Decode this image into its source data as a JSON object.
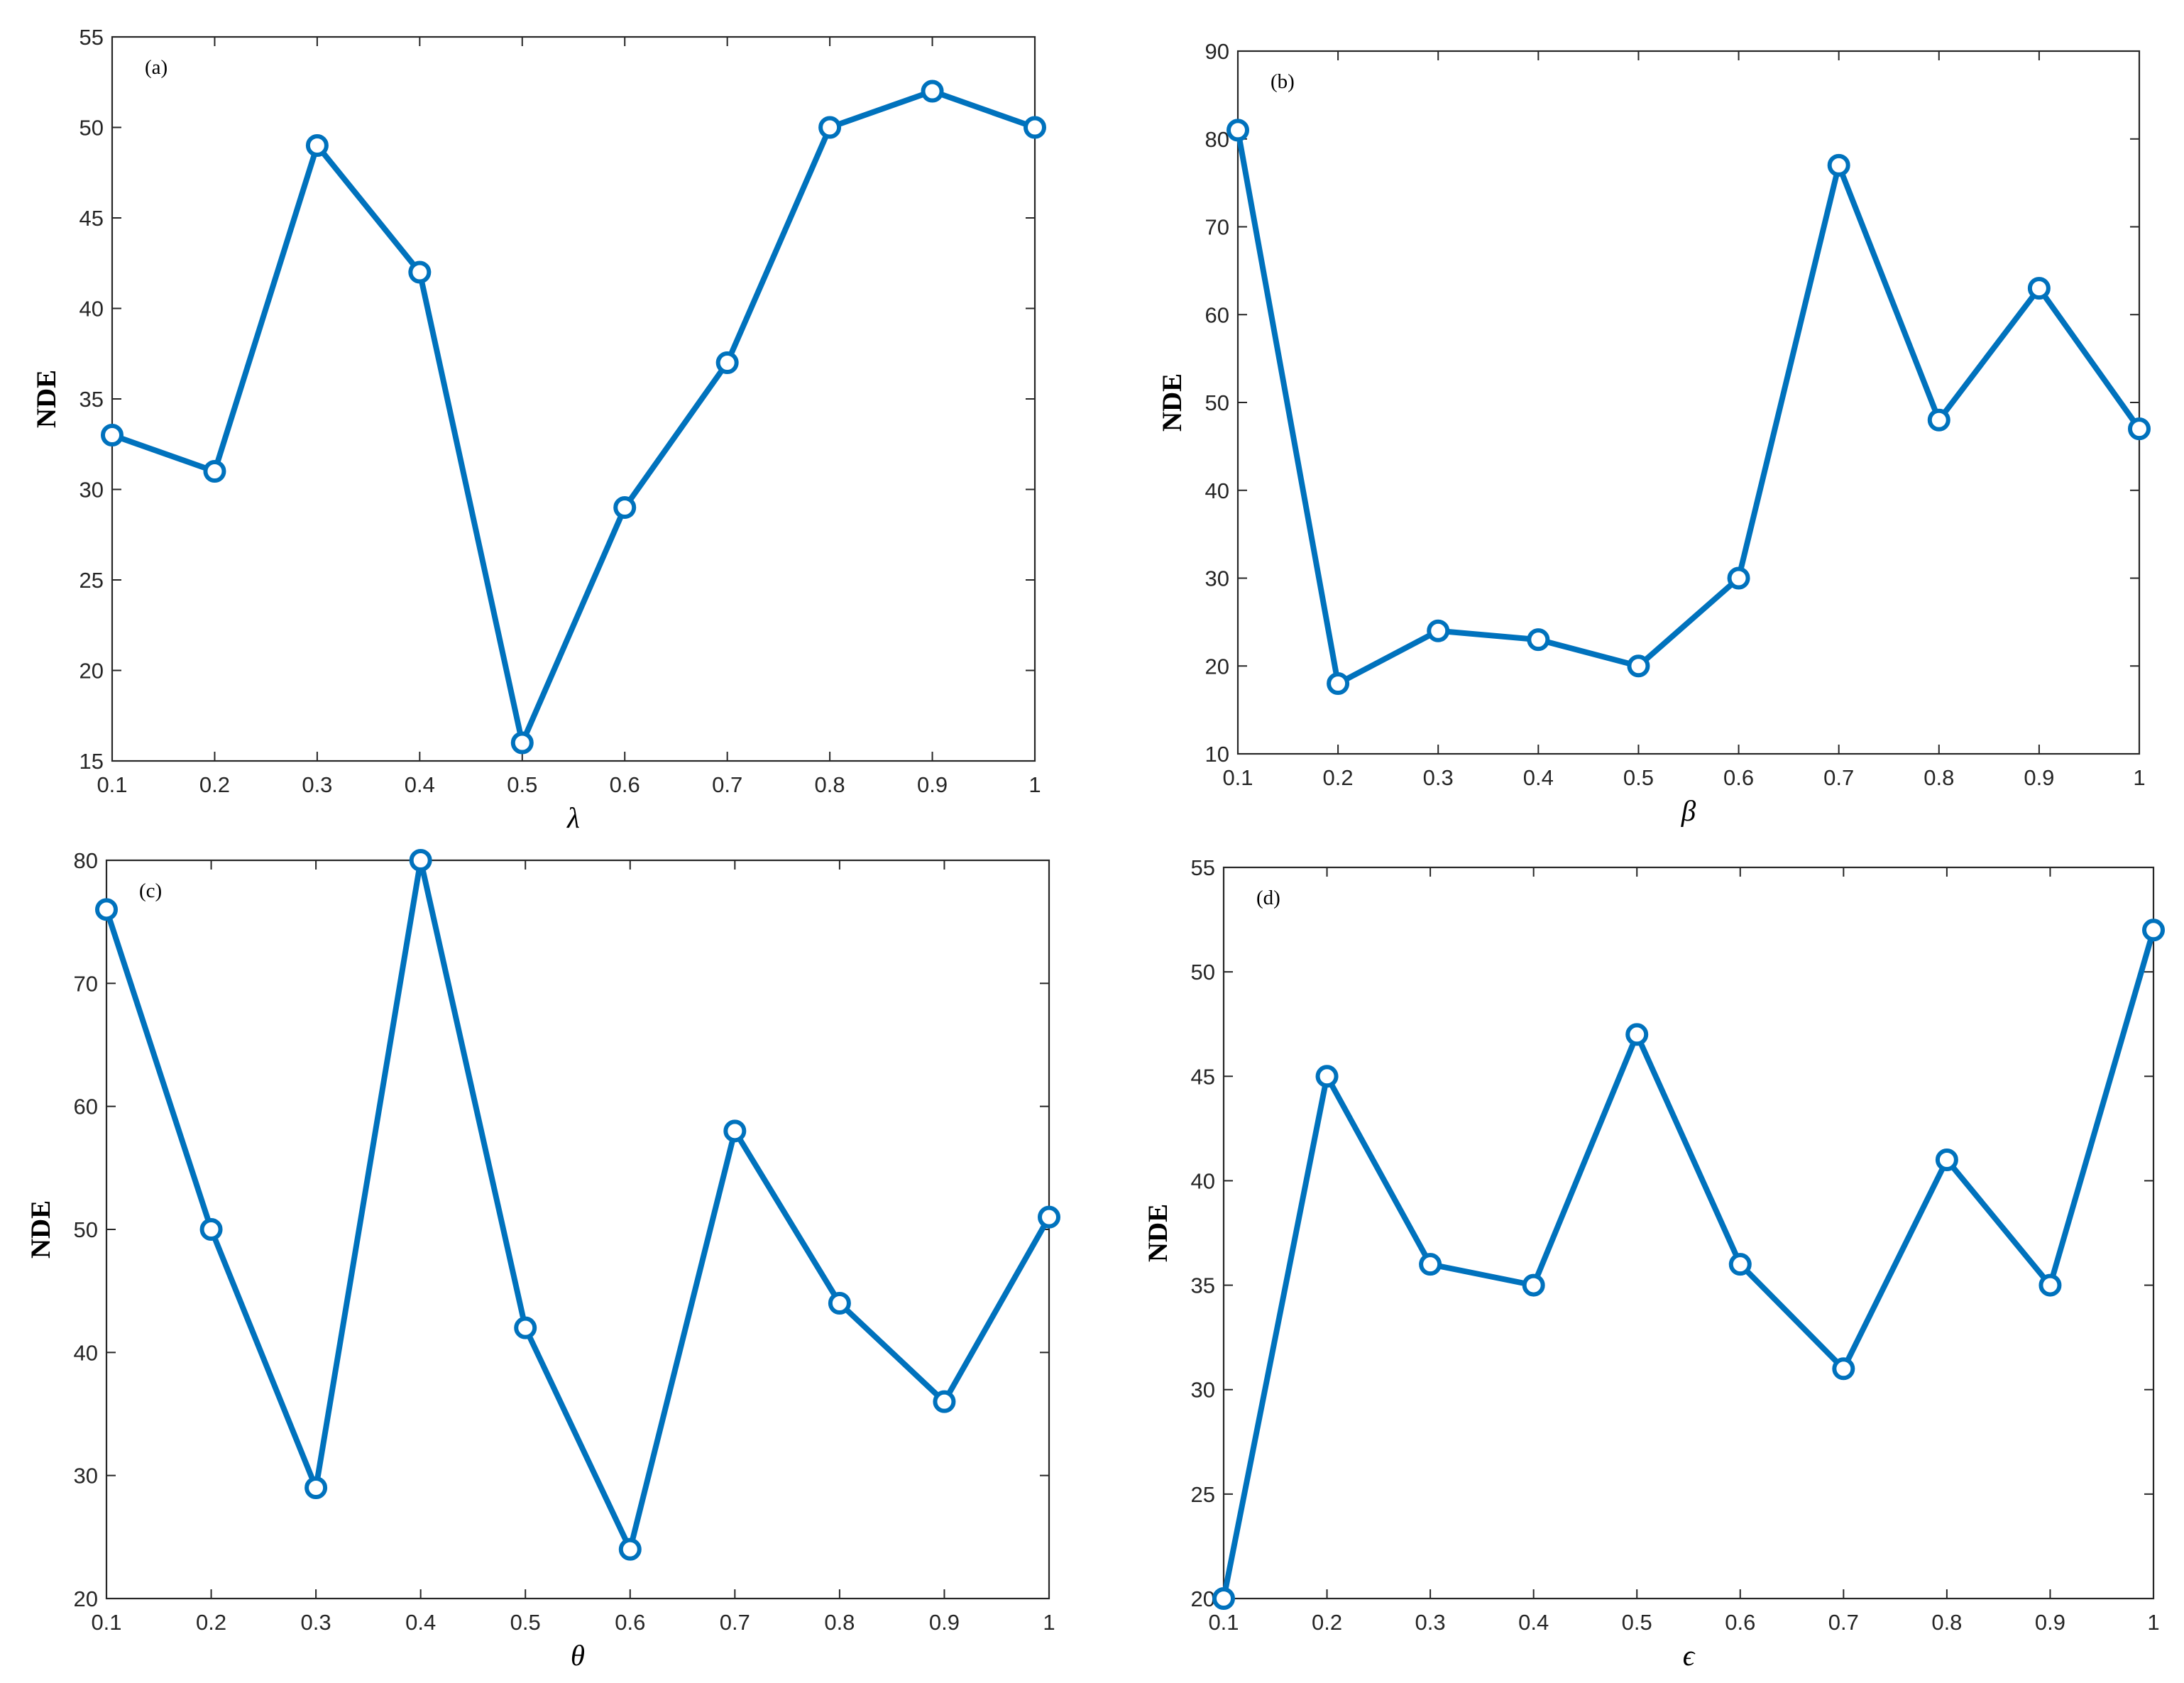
{
  "chart_data": [
    {
      "type": "line",
      "panel_label": "(a)",
      "xlabel": "λ",
      "ylabel": "NDE",
      "x": [
        0.1,
        0.2,
        0.3,
        0.4,
        0.5,
        0.6,
        0.7,
        0.8,
        0.9,
        1
      ],
      "values": [
        33,
        31,
        49,
        42,
        16,
        29,
        37,
        50,
        52,
        50
      ],
      "xlim": [
        0.1,
        1
      ],
      "ylim": [
        15,
        55
      ],
      "xticks": [
        "0.1",
        "0.2",
        "0.3",
        "0.4",
        "0.5",
        "0.6",
        "0.7",
        "0.8",
        "0.9",
        "1"
      ],
      "yticks": [
        "15",
        "20",
        "25",
        "30",
        "35",
        "40",
        "45",
        "50",
        "55"
      ],
      "line_color": "#0072BD",
      "marker": "circle",
      "grid": false
    },
    {
      "type": "line",
      "panel_label": "(b)",
      "xlabel": "β",
      "ylabel": "NDE",
      "x": [
        0.1,
        0.2,
        0.3,
        0.4,
        0.5,
        0.6,
        0.7,
        0.8,
        0.9,
        1
      ],
      "values": [
        81,
        18,
        24,
        23,
        20,
        30,
        77,
        48,
        63,
        47
      ],
      "xlim": [
        0.1,
        1
      ],
      "ylim": [
        10,
        90
      ],
      "xticks": [
        "0.1",
        "0.2",
        "0.3",
        "0.4",
        "0.5",
        "0.6",
        "0.7",
        "0.8",
        "0.9",
        "1"
      ],
      "yticks": [
        "10",
        "20",
        "30",
        "40",
        "50",
        "60",
        "70",
        "80",
        "90"
      ],
      "line_color": "#0072BD",
      "marker": "circle",
      "grid": false
    },
    {
      "type": "line",
      "panel_label": "(c)",
      "xlabel": "θ",
      "ylabel": "NDE",
      "x": [
        0.1,
        0.2,
        0.3,
        0.4,
        0.5,
        0.6,
        0.7,
        0.8,
        0.9,
        1
      ],
      "values": [
        76,
        50,
        29,
        80,
        42,
        24,
        58,
        44,
        36,
        51
      ],
      "xlim": [
        0.1,
        1
      ],
      "ylim": [
        20,
        80
      ],
      "xticks": [
        "0.1",
        "0.2",
        "0.3",
        "0.4",
        "0.5",
        "0.6",
        "0.7",
        "0.8",
        "0.9",
        "1"
      ],
      "yticks": [
        "20",
        "30",
        "40",
        "50",
        "60",
        "70",
        "80"
      ],
      "line_color": "#0072BD",
      "marker": "circle",
      "grid": false
    },
    {
      "type": "line",
      "panel_label": "(d)",
      "xlabel": "ϵ",
      "ylabel": "NDE",
      "x": [
        0.1,
        0.2,
        0.3,
        0.4,
        0.5,
        0.6,
        0.7,
        0.8,
        0.9,
        1
      ],
      "values": [
        20,
        45,
        36,
        35,
        47,
        36,
        31,
        41,
        35,
        52
      ],
      "xlim": [
        0.1,
        1
      ],
      "ylim": [
        20,
        55
      ],
      "xticks": [
        "0.1",
        "0.2",
        "0.3",
        "0.4",
        "0.5",
        "0.6",
        "0.7",
        "0.8",
        "0.9",
        "1"
      ],
      "yticks": [
        "20",
        "25",
        "30",
        "35",
        "40",
        "45",
        "50",
        "55"
      ],
      "line_color": "#0072BD",
      "marker": "circle",
      "grid": false
    }
  ]
}
